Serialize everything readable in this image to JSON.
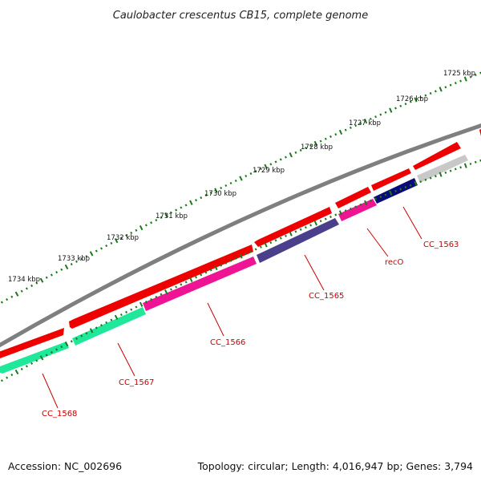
{
  "title": "Caulobacter crescentus CB15, complete genome",
  "footer": {
    "accession": "Accession: NC_002696",
    "summary": "Topology: circular; Length: 4,016,947 bp; Genes: 3,794"
  },
  "colors": {
    "backbone": "#808080",
    "forward_cds": "#ee0000",
    "tick": "#1a7a1a",
    "label": "#cc0000",
    "recO": "#ee1493",
    "CC_1563": "#0a0a7a",
    "CC_1565": "#4a3f8a",
    "CC_1566": "#ee1493",
    "CC_1567": "#1fe89a",
    "CC_1568": "#1fe89a",
    "CC_1562": "#c8c8c8"
  },
  "ticks": [
    {
      "label": "1725 kbp"
    },
    {
      "label": "1726 kbp"
    },
    {
      "label": "1727 kbp"
    },
    {
      "label": "1728 kbp"
    },
    {
      "label": "1729 kbp"
    },
    {
      "label": "1730 kbp"
    },
    {
      "label": "1731 kbp"
    },
    {
      "label": "1732 kbp"
    },
    {
      "label": "1733 kbp"
    },
    {
      "label": "1734 kbp"
    }
  ],
  "genes": [
    {
      "label": "CC_1563"
    },
    {
      "label": "recO"
    },
    {
      "label": "CC_1565"
    },
    {
      "label": "CC_1566"
    },
    {
      "label": "CC_1567"
    },
    {
      "label": "CC_1568"
    }
  ]
}
